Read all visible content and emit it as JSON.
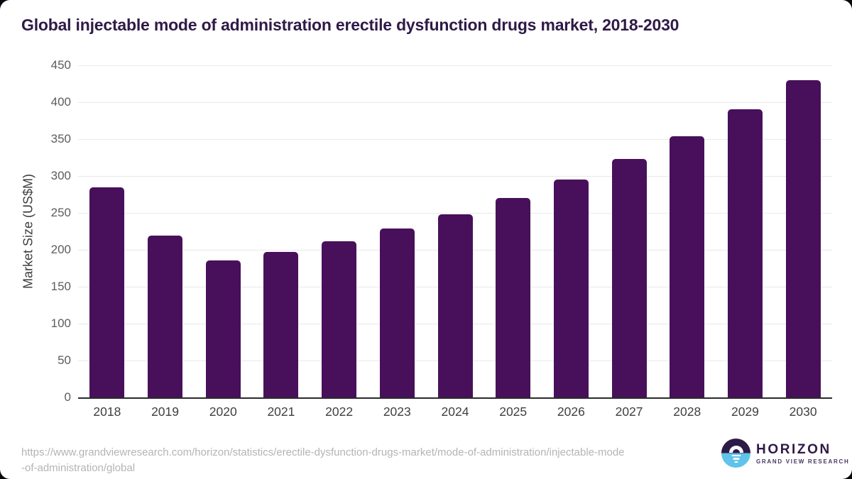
{
  "chart_data": {
    "type": "bar",
    "title": "Global injectable mode of administration erectile dysfunction drugs market, 2018-2030",
    "categories": [
      "2018",
      "2019",
      "2020",
      "2021",
      "2022",
      "2023",
      "2024",
      "2025",
      "2026",
      "2027",
      "2028",
      "2029",
      "2030"
    ],
    "values": [
      285,
      219,
      186,
      197,
      212,
      229,
      248,
      270,
      295,
      323,
      354,
      390,
      430
    ],
    "xlabel": "",
    "ylabel": "Market Size (US$M)",
    "ylim": [
      0,
      450
    ],
    "ytick_step": 50,
    "grid": true,
    "legend": "none",
    "bar_color": "#48105a"
  },
  "colors": {
    "title_text": "#2e1a47",
    "bar": "#48105a",
    "gridline": "#e9e9e9",
    "baseline": "#2b2b2b",
    "axis_text": "#3f3f3f",
    "url_text": "#b4b4b4",
    "logo_top": "#2e1a47",
    "logo_bottom": "#5fc3eb"
  },
  "footer": {
    "url_line1": "https://www.grandviewresearch.com/horizon/statistics/erectile-dysfunction-drugs-market/mode-of-administration/injectable-mode",
    "url_line2": "-of-administration/global",
    "logo": {
      "name": "HORIZON",
      "subtitle": "GRAND VIEW RESEARCH"
    }
  }
}
